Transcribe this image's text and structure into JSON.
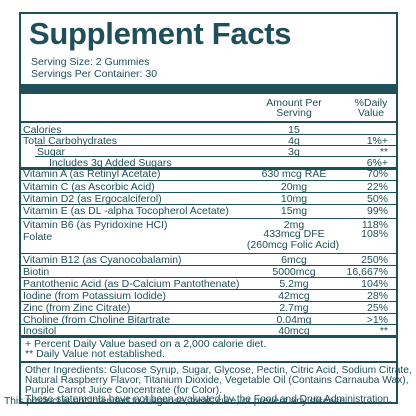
{
  "title": "Supplement Facts",
  "serving_size": "Serving Size: 2 Gummies",
  "servings_per_container": "Servings Per Container: 30",
  "header": {
    "amount_line1": "Amount Per",
    "amount_line2": "Serving",
    "dv_line1": "%Daily",
    "dv_line2": "Value"
  },
  "rows": [
    {
      "name": "Calories",
      "amount": "15",
      "dv": ""
    },
    {
      "name": "Total Carbohydrates",
      "amount": "4g",
      "dv": "1%+"
    },
    {
      "name": "Sugar",
      "amount": "3g",
      "dv": "**"
    },
    {
      "name": "Includes 3g Added Sugars",
      "amount": "",
      "dv": "6%+"
    },
    {
      "name": "Vitamin A (as Retinyl Acetate)",
      "amount": "630 mcg RAE",
      "dv": "70%"
    },
    {
      "name": "Vitamin C (as Ascorbic Acid)",
      "amount": "20mg",
      "dv": "22%"
    },
    {
      "name": "Vitamin D2 (as Ergocalciferol)",
      "amount": "10mg",
      "dv": "50%"
    },
    {
      "name": "Vitamin E (as DL -alpha Tocopherol Acetate)",
      "amount": "15mg",
      "dv": "99%"
    },
    {
      "name": "Vitamin B6 (as Pyridoxine HCI)",
      "amount": "2mg",
      "dv": "118%"
    },
    {
      "name": "Folate",
      "amount": "433mcg DFE",
      "amount2": "(260mcg Folic Acid)",
      "dv": "108%"
    },
    {
      "name": "Vitamin B12 (as Cyanocobalamin)",
      "amount": "6mcg",
      "dv": "250%"
    },
    {
      "name": "Biotin",
      "amount": "5000mcg",
      "dv": "16,667%"
    },
    {
      "name": "Pantothenic Acid (as D-Calcium Pantothenate)",
      "amount": "5.2mg",
      "dv": "104%"
    },
    {
      "name": "Iodine (from Potassium Iodide)",
      "amount": "42mcg",
      "dv": "28%"
    },
    {
      "name": "Zinc (from Zinc Citrate)",
      "amount": "2.7mg",
      "dv": "25%"
    },
    {
      "name": "Choline (from Choline Bitartrate",
      "amount": "0.04mg",
      "dv": ">1%"
    },
    {
      "name": "Inositol",
      "amount": "40mcg",
      "dv": "**"
    }
  ],
  "footnotes": [
    "+ Percent Daily Value based on a 2,000 calorie diet.",
    "** Daily Value not established."
  ],
  "other_ingredients": [
    "Other Ingredients: Glucose Syrup, Sugar, Glycose, Pectin, Citric Acid, Sodium Citrate,",
    "Natural Raspberry Flavor, Titanium Dioxide, Vegetable Oil (Contains Carnauba Wax),",
    "Purple Carrot Juice Concentrate (for Color)."
  ],
  "disclaimer": [
    "These statements have not been evaluated by the Food and Drug Administration.",
    "This product is not intended to diagnose, treat, cure, or prevent any disease."
  ],
  "colors": {
    "ink": "#1f4f58",
    "background": "#ffffff"
  }
}
